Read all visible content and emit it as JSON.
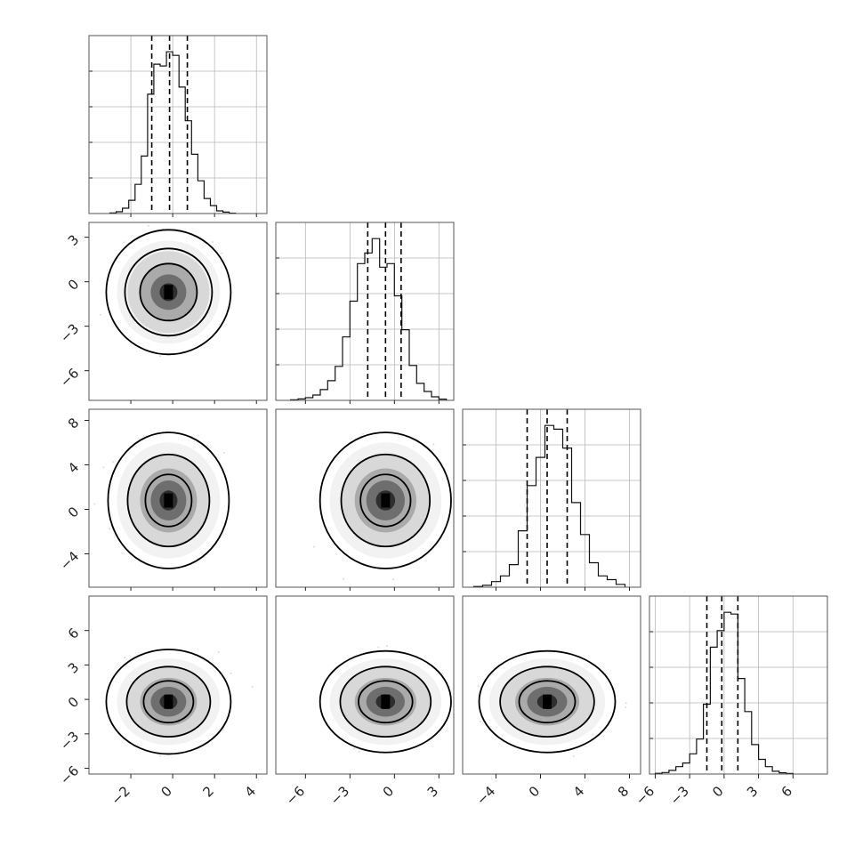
{
  "chart_data": {
    "type": "corner",
    "grid": true,
    "parameters": [
      {
        "range": [
          -4,
          4.5
        ],
        "x_tick_labels": [
          "−2",
          "0",
          "2",
          "4"
        ],
        "x_ticks": [
          -2,
          0,
          2,
          4
        ],
        "quantiles": [
          -1.0,
          -0.15,
          0.7
        ],
        "hist_x": [
          -3.0,
          -2.7,
          -2.4,
          -2.1,
          -1.8,
          -1.5,
          -1.2,
          -0.9,
          -0.6,
          -0.3,
          0.0,
          0.3,
          0.6,
          0.9,
          1.2,
          1.5,
          1.8,
          2.1,
          2.4,
          2.7,
          3.0
        ],
        "hist_values": [
          0.003,
          0.01,
          0.03,
          0.075,
          0.165,
          0.325,
          0.675,
          0.845,
          0.835,
          0.915,
          0.895,
          0.715,
          0.525,
          0.335,
          0.185,
          0.085,
          0.045,
          0.015,
          0.008,
          0.002
        ]
      },
      {
        "range": [
          -8,
          4
        ],
        "y_tick_labels": [
          "3",
          "0",
          "−3",
          "−6"
        ],
        "y_ticks": [
          3,
          0,
          -3,
          -6
        ],
        "x_tick_labels": [
          "−6",
          "−3",
          "0",
          "3"
        ],
        "x_ticks": [
          -6,
          -3,
          0,
          3
        ],
        "quantiles": [
          -1.8,
          -0.6,
          0.45
        ],
        "hist_x": [
          -7.0,
          -6.5,
          -6.0,
          -5.5,
          -5.0,
          -4.5,
          -4.0,
          -3.5,
          -3.0,
          -2.5,
          -2.0,
          -1.5,
          -1.0,
          -0.5,
          0.0,
          0.5,
          1.0,
          1.5,
          2.0,
          2.5,
          3.0,
          3.5
        ],
        "hist_values": [
          0.003,
          0.008,
          0.015,
          0.03,
          0.06,
          0.11,
          0.19,
          0.355,
          0.555,
          0.765,
          0.825,
          0.905,
          0.745,
          0.765,
          0.585,
          0.395,
          0.195,
          0.095,
          0.05,
          0.02,
          0.007
        ]
      },
      {
        "range": [
          -7,
          9
        ],
        "y_tick_labels": [
          "8",
          "4",
          "0",
          "−4"
        ],
        "y_ticks": [
          8,
          4,
          0,
          -4
        ],
        "x_tick_labels": [
          "−4",
          "0",
          "4",
          "8"
        ],
        "x_ticks": [
          -4,
          0,
          4,
          8
        ],
        "quantiles": [
          -1.2,
          0.6,
          2.4
        ],
        "hist_x": [
          -6.0,
          -5.2,
          -4.4,
          -3.6,
          -2.8,
          -2.0,
          -1.2,
          -0.4,
          0.4,
          1.2,
          2.0,
          2.8,
          3.6,
          4.4,
          5.2,
          6.0,
          6.8,
          7.6
        ],
        "hist_values": [
          0.004,
          0.01,
          0.03,
          0.06,
          0.12,
          0.3,
          0.54,
          0.69,
          0.86,
          0.84,
          0.74,
          0.45,
          0.28,
          0.13,
          0.06,
          0.04,
          0.015
        ]
      },
      {
        "range": [
          -6.5,
          9
        ],
        "y_tick_labels": [
          "6",
          "3",
          "0",
          "−3",
          "−6"
        ],
        "y_ticks": [
          6,
          3,
          0,
          -3,
          -6
        ],
        "x_tick_labels": [
          "−6",
          "−3",
          "0",
          "3",
          "6"
        ],
        "x_ticks": [
          -6,
          -3,
          0,
          3,
          6
        ],
        "quantiles": [
          -1.5,
          -0.2,
          1.2
        ],
        "hist_x": [
          -6.0,
          -5.4,
          -4.8,
          -4.2,
          -3.6,
          -3.0,
          -2.4,
          -1.8,
          -1.2,
          -0.6,
          0.0,
          0.6,
          1.2,
          1.8,
          2.4,
          3.0,
          3.6,
          4.2,
          4.8,
          5.4,
          6.0
        ],
        "hist_values": [
          0.004,
          0.008,
          0.02,
          0.04,
          0.06,
          0.11,
          0.19,
          0.38,
          0.69,
          0.78,
          0.88,
          0.87,
          0.52,
          0.34,
          0.16,
          0.08,
          0.04,
          0.015,
          0.007,
          0.003
        ]
      }
    ],
    "joint_panels": [
      {
        "x": 0,
        "y": 1,
        "center": [
          -0.2,
          -0.7
        ],
        "std": [
          0.85,
          1.2
        ],
        "contours": [
          1.6,
          2.45,
          3.5
        ]
      },
      {
        "x": 0,
        "y": 2,
        "center": [
          -0.2,
          0.8
        ],
        "std": [
          0.85,
          1.8
        ],
        "contours": [
          1.3,
          2.3,
          3.4
        ]
      },
      {
        "x": 1,
        "y": 2,
        "center": [
          -0.6,
          0.8
        ],
        "std": [
          1.3,
          1.8
        ],
        "contours": [
          1.3,
          2.3,
          3.4
        ]
      },
      {
        "x": 0,
        "y": 3,
        "center": [
          -0.2,
          -0.2
        ],
        "std": [
          0.85,
          1.3
        ],
        "contours": [
          1.4,
          2.35,
          3.5
        ]
      },
      {
        "x": 1,
        "y": 3,
        "center": [
          -0.6,
          -0.2
        ],
        "std": [
          1.3,
          1.3
        ],
        "contours": [
          1.4,
          2.35,
          3.4
        ]
      },
      {
        "x": 2,
        "y": 3,
        "center": [
          0.6,
          -0.2
        ],
        "std": [
          1.8,
          1.3
        ],
        "contours": [
          1.4,
          2.35,
          3.4
        ]
      }
    ],
    "colors": {
      "line": "#000000",
      "scatter": "#9a9a9a",
      "grid": "#b8b8b8"
    }
  }
}
